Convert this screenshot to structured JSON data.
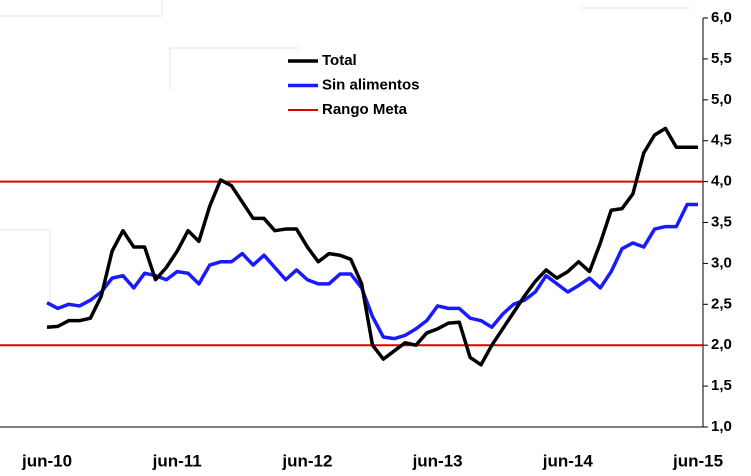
{
  "chart_data": {
    "type": "line",
    "categories": [
      "jun-10",
      null,
      null,
      null,
      null,
      null,
      null,
      null,
      null,
      null,
      null,
      null,
      "jun-11",
      null,
      null,
      null,
      null,
      null,
      null,
      null,
      null,
      null,
      null,
      null,
      "jun-12",
      null,
      null,
      null,
      null,
      null,
      null,
      null,
      null,
      null,
      null,
      null,
      "jun-13",
      null,
      null,
      null,
      null,
      null,
      null,
      null,
      null,
      null,
      null,
      null,
      "jun-14",
      null,
      null,
      null,
      null,
      null,
      null,
      null,
      null,
      null,
      null,
      null,
      "jun-15"
    ],
    "series": [
      {
        "name": "Total",
        "color": "#000000",
        "values": [
          2.22,
          2.23,
          2.3,
          2.3,
          2.33,
          2.6,
          3.15,
          3.4,
          3.2,
          3.2,
          2.8,
          2.95,
          3.15,
          3.4,
          3.27,
          3.7,
          4.02,
          3.95,
          3.75,
          3.55,
          3.55,
          3.4,
          3.42,
          3.42,
          3.2,
          3.02,
          3.12,
          3.1,
          3.05,
          2.75,
          2.0,
          1.83,
          1.93,
          2.03,
          2.0,
          2.15,
          2.2,
          2.27,
          2.28,
          1.85,
          1.76,
          2.0,
          2.2,
          2.4,
          2.6,
          2.78,
          2.92,
          2.82,
          2.9,
          3.02,
          2.9,
          3.25,
          3.65,
          3.67,
          3.85,
          4.35,
          4.57,
          4.65,
          4.42,
          4.42,
          4.42
        ]
      },
      {
        "name": "Sin alimentos",
        "color": "#1a1aff",
        "values": [
          2.52,
          2.45,
          2.5,
          2.48,
          2.55,
          2.65,
          2.82,
          2.85,
          2.7,
          2.88,
          2.85,
          2.8,
          2.9,
          2.88,
          2.75,
          2.98,
          3.02,
          3.02,
          3.12,
          2.98,
          3.1,
          2.95,
          2.8,
          2.92,
          2.8,
          2.75,
          2.75,
          2.87,
          2.87,
          2.7,
          2.35,
          2.1,
          2.08,
          2.12,
          2.2,
          2.3,
          2.48,
          2.45,
          2.45,
          2.33,
          2.3,
          2.22,
          2.38,
          2.5,
          2.55,
          2.65,
          2.85,
          2.75,
          2.65,
          2.73,
          2.82,
          2.7,
          2.9,
          3.18,
          3.25,
          3.2,
          3.42,
          3.45,
          3.45,
          3.72,
          3.72
        ]
      }
    ],
    "reference_lines": {
      "name": "Rango Meta",
      "color": "#e00000",
      "values": [
        2.0,
        4.0
      ]
    },
    "ylim": [
      1.0,
      6.0
    ],
    "yticks": [
      {
        "value": 1.0,
        "label": "1,0"
      },
      {
        "value": 1.5,
        "label": "1,5"
      },
      {
        "value": 2.0,
        "label": "2,0"
      },
      {
        "value": 2.5,
        "label": "2,5"
      },
      {
        "value": 3.0,
        "label": "3,0"
      },
      {
        "value": 3.5,
        "label": "3,5"
      },
      {
        "value": 4.0,
        "label": "4,0"
      },
      {
        "value": 4.5,
        "label": "4,5"
      },
      {
        "value": 5.0,
        "label": "5,0"
      },
      {
        "value": 5.5,
        "label": "5,5"
      },
      {
        "value": 6.0,
        "label": "6,0"
      }
    ],
    "y_axis_side": "right"
  }
}
